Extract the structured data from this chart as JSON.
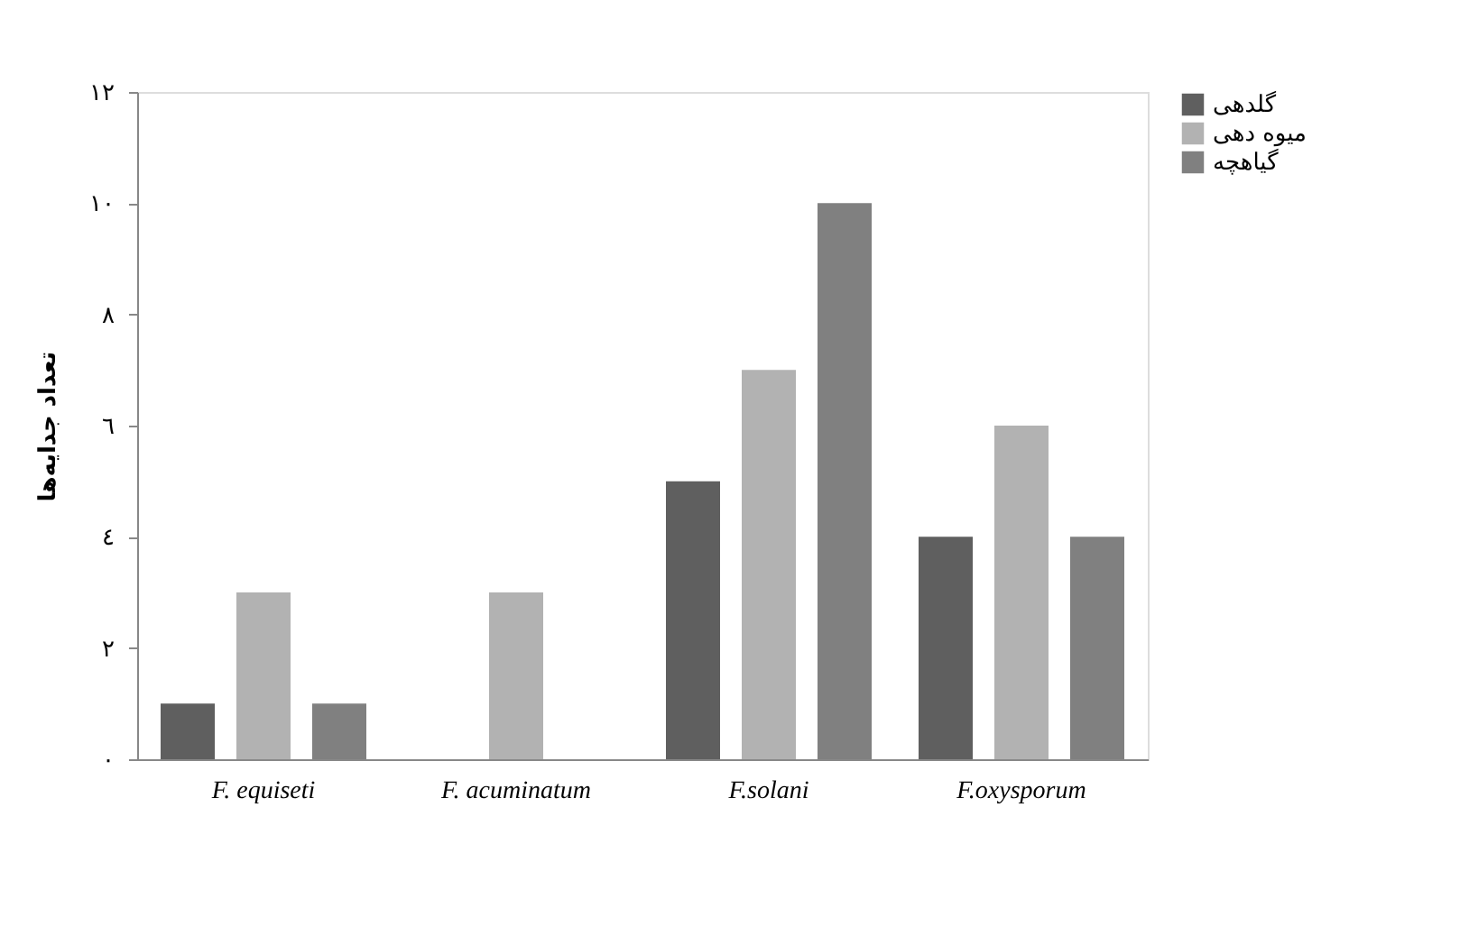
{
  "chart_data": {
    "type": "bar",
    "ylabel": "تعداد جدایه‌ها",
    "categories": [
      "F. equiseti",
      "F. acuminatum",
      "F.solani",
      "F.oxysporum"
    ],
    "series": [
      {
        "name": "گلدهی",
        "color": "#5f5f5f",
        "values": [
          1,
          0,
          5,
          4
        ]
      },
      {
        "name": "میوه دهی",
        "color": "#b2b2b2",
        "values": [
          3,
          3,
          7,
          6
        ]
      },
      {
        "name": "گیاهچه",
        "color": "#808080",
        "values": [
          1,
          0,
          10,
          4
        ]
      }
    ],
    "ylim": [
      0,
      12
    ],
    "yticks": [
      {
        "value": 0,
        "label": "٠"
      },
      {
        "value": 2,
        "label": "٢"
      },
      {
        "value": 4,
        "label": "٤"
      },
      {
        "value": 6,
        "label": "٦"
      },
      {
        "value": 8,
        "label": "٨"
      },
      {
        "value": 10,
        "label": "١٠"
      },
      {
        "value": 12,
        "label": "١٢"
      }
    ],
    "grid": false,
    "legend": "right"
  }
}
